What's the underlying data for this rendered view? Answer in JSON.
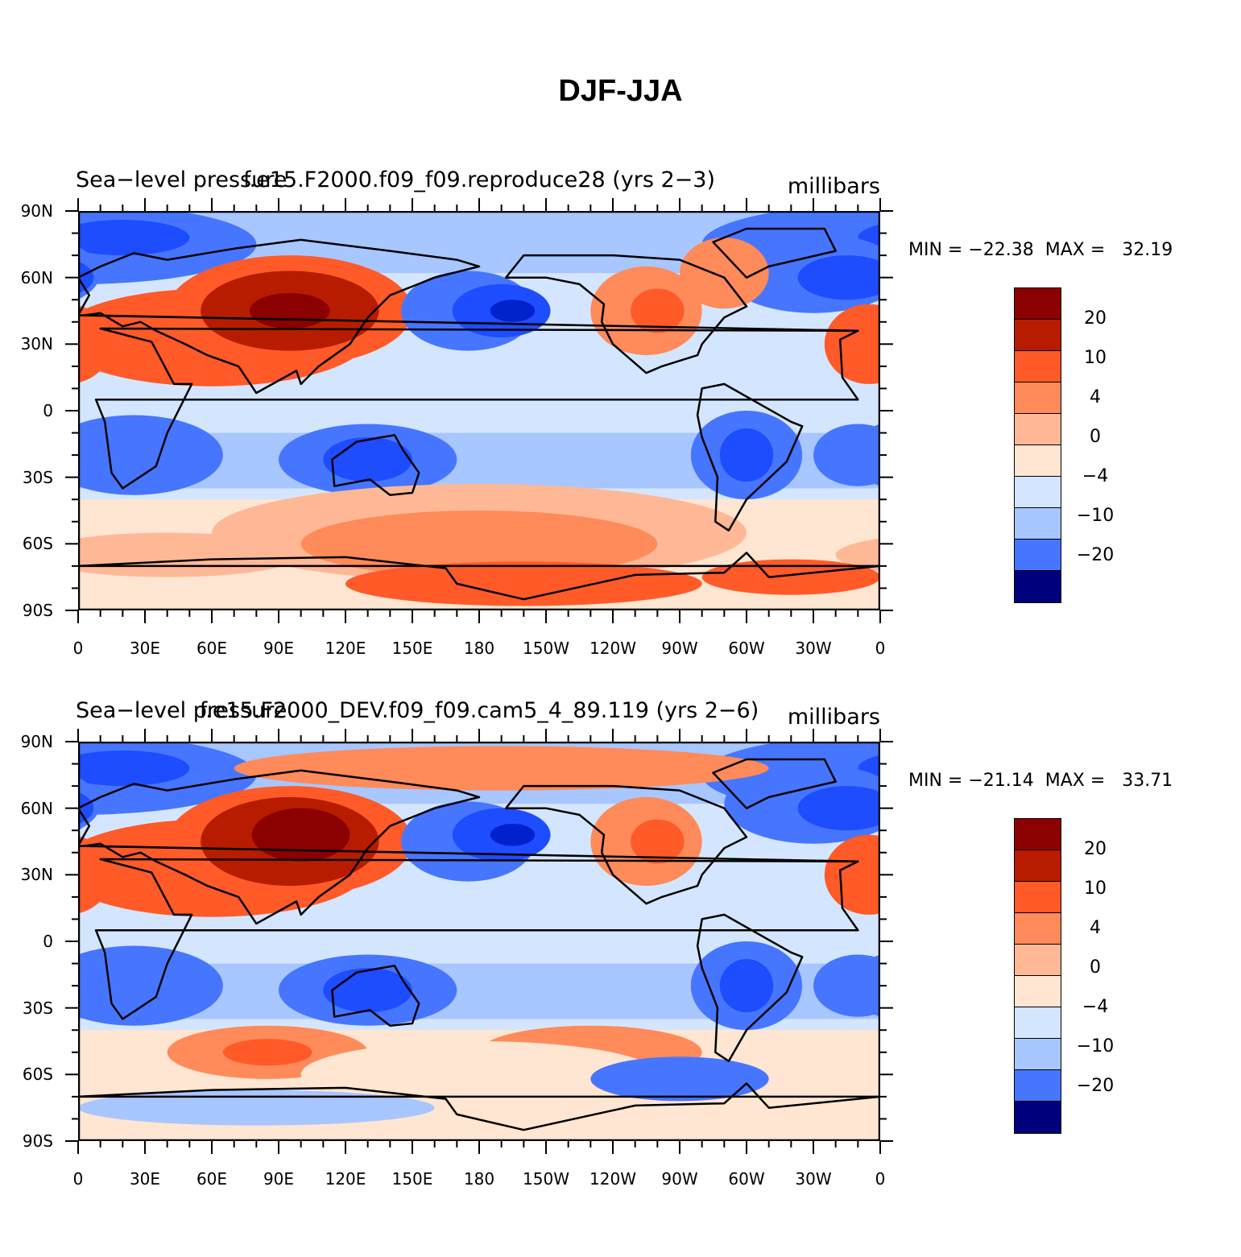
{
  "title": "DJF-JJA",
  "panels": [
    {
      "left_label": "Sea−level pressure",
      "center_label": "f.e15.F2000.f09_f09.reproduce28 (yrs 2−3)",
      "units": "millibars",
      "min_max": "MIN = −22.38  MAX =   32.19"
    },
    {
      "left_label": "Sea−level pressure",
      "center_label": "f.e15.F2000_DEV.f09_f09.cam5_4_89.119 (yrs 2−6)",
      "units": "millibars",
      "min_max": "MIN = −21.14  MAX =   33.71"
    }
  ],
  "axes": {
    "lat_labels": [
      "90N",
      "60N",
      "30N",
      "0",
      "30S",
      "60S",
      "90S"
    ],
    "lon_labels": [
      "0",
      "30E",
      "60E",
      "90E",
      "120E",
      "150E",
      "180",
      "150W",
      "120W",
      "90W",
      "60W",
      "30W",
      "0"
    ]
  },
  "colorbar": {
    "colors": [
      "#8b0000",
      "#b81c00",
      "#e03a14",
      "#ff5a28",
      "#ff8a5a",
      "#ffb896",
      "#ffe6d2",
      "#d4e6ff",
      "#a8c6ff",
      "#78a2ff",
      "#4676ff",
      "#1e4cff",
      "#0022cc",
      "#001099",
      "#00007c"
    ],
    "labels": [
      "20",
      "10",
      "4",
      "0",
      "−4",
      "−10",
      "−20"
    ]
  },
  "map_colors": {
    "land_outline": "#000000",
    "strong_pos": "#b81c00",
    "pos": "#ff5a28",
    "weak_pos": "#ff8a5a",
    "slight_pos": "#ffb896",
    "near_zero_pos": "#ffe6d2",
    "near_zero_neg": "#d4e6ff",
    "slight_neg": "#a8c6ff",
    "neg": "#4676ff",
    "strong_neg": "#1e4cff",
    "very_strong_neg": "#0022cc"
  }
}
